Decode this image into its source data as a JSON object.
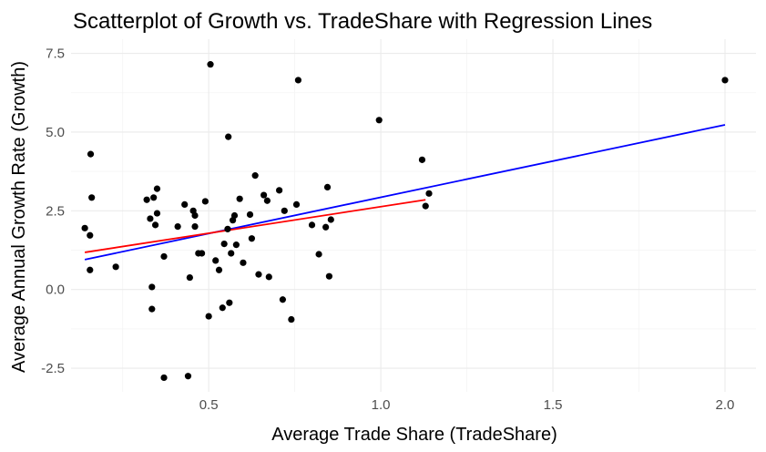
{
  "chart_data": {
    "type": "scatter",
    "title": "Scatterplot of Growth vs. TradeShare with Regression Lines",
    "xlabel": "Average Trade Share (TradeShare)",
    "ylabel": "Average Annual Growth Rate (Growth)",
    "xlim": [
      0.1,
      2.09
    ],
    "ylim": [
      -3.25,
      7.95
    ],
    "x_ticks": [
      0.5,
      1.0,
      1.5,
      2.0
    ],
    "x_tick_labels": [
      "0.5",
      "1.0",
      "1.5",
      "2.0"
    ],
    "y_ticks": [
      -2.5,
      0.0,
      2.5,
      5.0,
      7.5
    ],
    "y_tick_labels": [
      "-2.5",
      "0.0",
      "2.5",
      "5.0",
      "7.5"
    ],
    "grid": true,
    "point_color": "#000000",
    "points": [
      {
        "x": 0.14,
        "y": 1.95
      },
      {
        "x": 0.155,
        "y": 1.72
      },
      {
        "x": 0.155,
        "y": 0.62
      },
      {
        "x": 0.157,
        "y": 4.3
      },
      {
        "x": 0.16,
        "y": 2.92
      },
      {
        "x": 0.23,
        "y": 0.72
      },
      {
        "x": 0.32,
        "y": 2.85
      },
      {
        "x": 0.33,
        "y": 2.25
      },
      {
        "x": 0.335,
        "y": 0.08
      },
      {
        "x": 0.335,
        "y": -0.62
      },
      {
        "x": 0.34,
        "y": 2.92
      },
      {
        "x": 0.345,
        "y": 2.05
      },
      {
        "x": 0.35,
        "y": 2.42
      },
      {
        "x": 0.35,
        "y": 3.2
      },
      {
        "x": 0.37,
        "y": -2.8
      },
      {
        "x": 0.37,
        "y": 1.05
      },
      {
        "x": 0.41,
        "y": 2.0
      },
      {
        "x": 0.43,
        "y": 2.7
      },
      {
        "x": 0.44,
        "y": -2.75
      },
      {
        "x": 0.445,
        "y": 0.38
      },
      {
        "x": 0.455,
        "y": 2.5
      },
      {
        "x": 0.46,
        "y": 2.35
      },
      {
        "x": 0.46,
        "y": 2.0
      },
      {
        "x": 0.47,
        "y": 1.15
      },
      {
        "x": 0.48,
        "y": 1.15
      },
      {
        "x": 0.49,
        "y": 2.8
      },
      {
        "x": 0.5,
        "y": -0.85
      },
      {
        "x": 0.505,
        "y": 7.15
      },
      {
        "x": 0.52,
        "y": 0.92
      },
      {
        "x": 0.53,
        "y": 0.62
      },
      {
        "x": 0.54,
        "y": -0.58
      },
      {
        "x": 0.545,
        "y": 1.45
      },
      {
        "x": 0.555,
        "y": 1.92
      },
      {
        "x": 0.557,
        "y": 4.85
      },
      {
        "x": 0.56,
        "y": -0.42
      },
      {
        "x": 0.565,
        "y": 1.15
      },
      {
        "x": 0.57,
        "y": 2.2
      },
      {
        "x": 0.575,
        "y": 2.35
      },
      {
        "x": 0.58,
        "y": 1.42
      },
      {
        "x": 0.59,
        "y": 2.88
      },
      {
        "x": 0.6,
        "y": 0.85
      },
      {
        "x": 0.62,
        "y": 2.38
      },
      {
        "x": 0.625,
        "y": 1.62
      },
      {
        "x": 0.635,
        "y": 3.62
      },
      {
        "x": 0.645,
        "y": 0.48
      },
      {
        "x": 0.66,
        "y": 3.0
      },
      {
        "x": 0.67,
        "y": 2.82
      },
      {
        "x": 0.675,
        "y": 0.4
      },
      {
        "x": 0.705,
        "y": 3.15
      },
      {
        "x": 0.715,
        "y": -0.32
      },
      {
        "x": 0.72,
        "y": 2.5
      },
      {
        "x": 0.74,
        "y": -0.95
      },
      {
        "x": 0.755,
        "y": 2.7
      },
      {
        "x": 0.76,
        "y": 6.65
      },
      {
        "x": 0.8,
        "y": 2.05
      },
      {
        "x": 0.82,
        "y": 1.12
      },
      {
        "x": 0.84,
        "y": 1.98
      },
      {
        "x": 0.845,
        "y": 3.25
      },
      {
        "x": 0.85,
        "y": 0.42
      },
      {
        "x": 0.855,
        "y": 2.22
      },
      {
        "x": 0.995,
        "y": 5.38
      },
      {
        "x": 1.12,
        "y": 4.12
      },
      {
        "x": 1.13,
        "y": 2.65
      },
      {
        "x": 1.14,
        "y": 3.05
      },
      {
        "x": 2.0,
        "y": 6.65
      }
    ],
    "series": [
      {
        "type": "line",
        "color": "#0000ff",
        "x": [
          0.14,
          2.0
        ],
        "y": [
          0.95,
          5.23
        ]
      },
      {
        "type": "line",
        "color": "#ff0000",
        "x": [
          0.14,
          1.13
        ],
        "y": [
          1.18,
          2.85
        ]
      }
    ]
  }
}
